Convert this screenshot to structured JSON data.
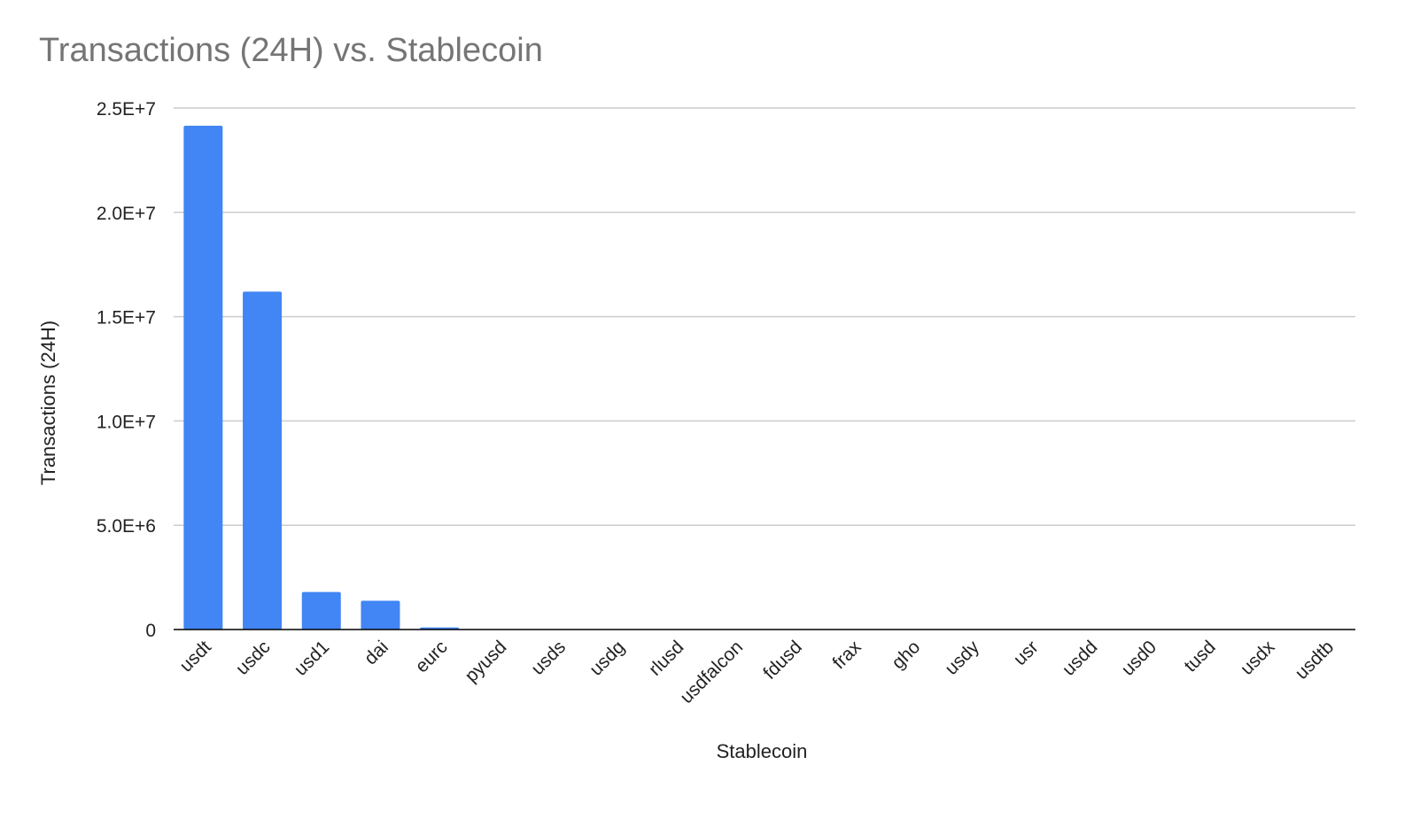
{
  "chart_data": {
    "type": "bar",
    "title": "Transactions (24H) vs. Stablecoin",
    "xlabel": "Stablecoin",
    "ylabel": "Transactions (24H)",
    "categories": [
      "usdt",
      "usdc",
      "usd1",
      "dai",
      "eurc",
      "pyusd",
      "usds",
      "usdg",
      "rlusd",
      "usdfalcon",
      "fdusd",
      "frax",
      "gho",
      "usdy",
      "usr",
      "usdd",
      "usd0",
      "tusd",
      "usdx",
      "usdtb"
    ],
    "values": [
      24150000,
      16200000,
      1800000,
      1380000,
      100000,
      15000,
      8000,
      6000,
      5000,
      4000,
      3000,
      2500,
      2000,
      1500,
      1200,
      1000,
      800,
      600,
      400,
      300
    ],
    "ylim": [
      0,
      25000000
    ],
    "y_ticks": [
      0,
      5000000,
      10000000,
      15000000,
      20000000,
      25000000
    ],
    "y_tick_labels": [
      "0",
      "5.0E+6",
      "1.0E+7",
      "1.5E+7",
      "2.0E+7",
      "2.5E+7"
    ],
    "grid": true,
    "legend": "none",
    "bar_color": "#4285f4",
    "grid_color": "#cccccc",
    "axis_color": "#000000",
    "title_color": "#757575"
  }
}
